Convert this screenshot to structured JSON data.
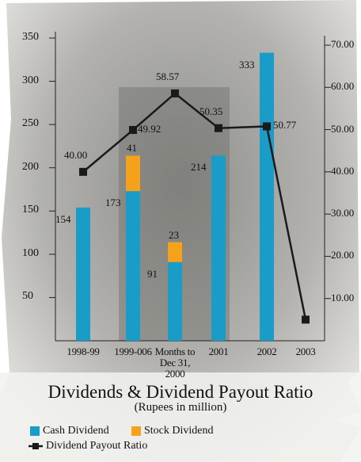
{
  "chart_data": {
    "type": "bar_line",
    "title": "Dividends & Dividend Payout Ratio",
    "subtitle": "(Rupees in million)",
    "categories": [
      "1998-99",
      "1999-006",
      "Months to Dec 31, 2000",
      "2001",
      "2002",
      "2003"
    ],
    "series": [
      {
        "name": "Cash Dividend",
        "type": "bar",
        "color": "#1a9cc8",
        "values": [
          154,
          173,
          91,
          214,
          333,
          null
        ]
      },
      {
        "name": "Stock Dividend",
        "type": "bar",
        "color": "#f5a21b",
        "values": [
          null,
          41,
          23,
          null,
          null,
          null
        ]
      },
      {
        "name": "Dividend Payout Ratio",
        "type": "line",
        "axis": "y2",
        "color": "#1a1a1a",
        "values": [
          40.0,
          49.92,
          58.57,
          50.35,
          50.77,
          5
        ],
        "value_labels": [
          "40.00",
          "49.92",
          "58.57",
          "50.35",
          "50.77",
          null
        ]
      }
    ],
    "ylim": [
      0,
      350
    ],
    "yticks": [
      50,
      100,
      150,
      200,
      250,
      300,
      350
    ],
    "y2lim": [
      0,
      70
    ],
    "y2ticks": [
      {
        "value": 10,
        "label": "10.00"
      },
      {
        "value": 20,
        "label": "20.00"
      },
      {
        "value": 30,
        "label": "30.00"
      },
      {
        "value": 40,
        "label": "40.00"
      },
      {
        "value": 50,
        "label": "50.00"
      },
      {
        "value": 60,
        "label": "60.00"
      },
      {
        "value": 70,
        "label": "70.00"
      }
    ],
    "stacked": true
  }
}
